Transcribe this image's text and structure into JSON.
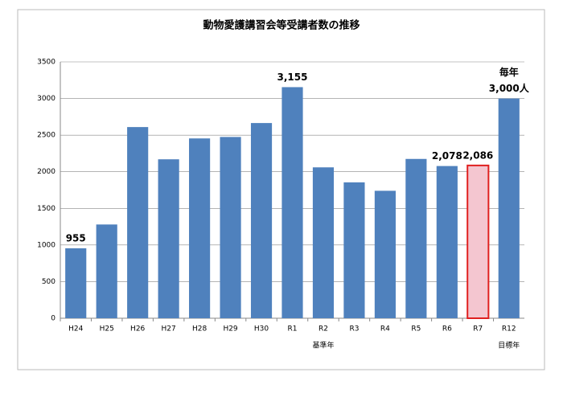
{
  "chart_data": {
    "type": "bar",
    "title": "動物愛護講習会等受講者数の推移",
    "categories": [
      "H24",
      "H25",
      "H26",
      "H27",
      "H28",
      "H29",
      "H30",
      "R1",
      "R2",
      "R3",
      "R4",
      "R5",
      "R6",
      "R7",
      "R12"
    ],
    "values": [
      955,
      1280,
      2610,
      2170,
      2455,
      2475,
      2665,
      3155,
      2060,
      1855,
      1740,
      2175,
      2078,
      2086,
      3000
    ],
    "value_labels": [
      "955",
      null,
      null,
      null,
      null,
      null,
      null,
      "3,155",
      null,
      null,
      null,
      null,
      "2,078",
      "2,086",
      "3,000人"
    ],
    "value_label_notes": [
      null,
      null,
      null,
      null,
      null,
      null,
      null,
      null,
      null,
      null,
      null,
      null,
      null,
      null,
      "毎年"
    ],
    "category_notes": [
      null,
      null,
      null,
      null,
      null,
      null,
      null,
      null,
      "基準年",
      null,
      null,
      null,
      null,
      null,
      "目標年"
    ],
    "colors": [
      "#4f81bd",
      "#4f81bd",
      "#4f81bd",
      "#4f81bd",
      "#4f81bd",
      "#4f81bd",
      "#4f81bd",
      "#4f81bd",
      "#4f81bd",
      "#4f81bd",
      "#4f81bd",
      "#4f81bd",
      "#4f81bd",
      "#f4c6d0",
      "#4f81bd"
    ],
    "edge_colors": [
      null,
      null,
      null,
      null,
      null,
      null,
      null,
      null,
      null,
      null,
      null,
      null,
      null,
      "#e02020",
      null
    ],
    "ylim": [
      0,
      3500
    ],
    "yticks": [
      0,
      500,
      1000,
      1500,
      2000,
      2500,
      3000,
      3500
    ],
    "grid": true
  }
}
